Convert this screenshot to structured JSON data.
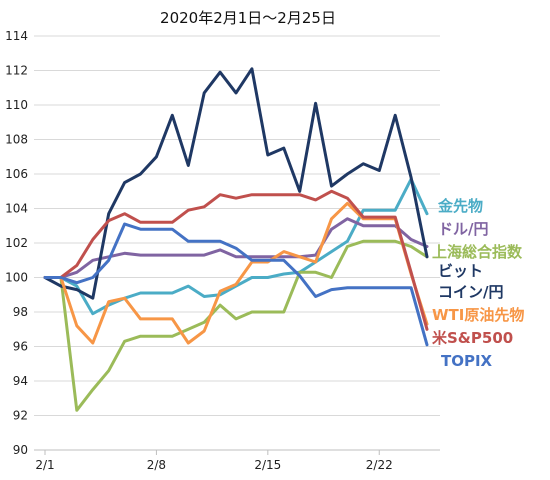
{
  "chart_data": {
    "type": "line",
    "title": "2020年2月1日～2月25日",
    "xlabel": "",
    "ylabel": "",
    "ylim": [
      90,
      114
    ],
    "yticks": [
      90,
      92,
      94,
      96,
      98,
      100,
      102,
      104,
      106,
      108,
      110,
      112,
      114
    ],
    "x": [
      1,
      2,
      3,
      4,
      5,
      6,
      7,
      8,
      9,
      10,
      11,
      12,
      13,
      14,
      15,
      16,
      17,
      18,
      19,
      20,
      21,
      22,
      23,
      24,
      25
    ],
    "xticks": [
      {
        "x": 1,
        "label": "2/1"
      },
      {
        "x": 8,
        "label": "2/8"
      },
      {
        "x": 15,
        "label": "2/15"
      },
      {
        "x": 22,
        "label": "2/22"
      }
    ],
    "grid": "horizontal",
    "legend_position": "right",
    "series": [
      {
        "name": "金先物",
        "color": "#4BACC6",
        "values": [
          100,
          100,
          99.5,
          97.9,
          98.4,
          98.8,
          99.1,
          99.1,
          99.1,
          99.5,
          98.9,
          99.0,
          99.5,
          100.0,
          100.0,
          100.2,
          100.3,
          100.9,
          101.5,
          102.1,
          103.9,
          103.9,
          103.9,
          105.7,
          103.7
        ]
      },
      {
        "name": "ドル/円",
        "color": "#8064A2",
        "values": [
          100,
          100,
          100.3,
          101.0,
          101.2,
          101.4,
          101.3,
          101.3,
          101.3,
          101.3,
          101.3,
          101.6,
          101.2,
          101.2,
          101.2,
          101.2,
          101.2,
          101.3,
          102.8,
          103.4,
          103.0,
          103.0,
          103.0,
          102.2,
          101.8
        ]
      },
      {
        "name": "上海総合指数",
        "color": "#9BBB59",
        "values": [
          100,
          100,
          92.3,
          93.5,
          94.6,
          96.3,
          96.6,
          96.6,
          96.6,
          97.0,
          97.4,
          98.4,
          97.6,
          98.0,
          98.0,
          98.0,
          100.3,
          100.3,
          100.0,
          101.8,
          102.1,
          102.1,
          102.1,
          101.8,
          101.2
        ]
      },
      {
        "name": "ビット\nコイン/円",
        "color": "#1F3864",
        "values": [
          100,
          99.5,
          99.3,
          98.8,
          103.7,
          105.5,
          106.0,
          107.0,
          109.4,
          106.5,
          110.7,
          111.9,
          110.7,
          112.1,
          107.1,
          107.5,
          105.0,
          110.1,
          105.3,
          106.0,
          106.6,
          106.2,
          109.4,
          105.8,
          101.2
        ]
      },
      {
        "name": "WTI原油先物",
        "color": "#F79646",
        "values": [
          100,
          100,
          97.2,
          96.2,
          98.6,
          98.8,
          97.6,
          97.6,
          97.6,
          96.2,
          96.9,
          99.2,
          99.6,
          100.9,
          100.9,
          101.5,
          101.2,
          100.9,
          103.4,
          104.3,
          103.4,
          103.4,
          103.4,
          100.2,
          97.3
        ]
      },
      {
        "name": "米S&P500",
        "color": "#C0504D",
        "values": [
          100,
          100,
          100.7,
          102.2,
          103.3,
          103.7,
          103.2,
          103.2,
          103.2,
          103.9,
          104.1,
          104.8,
          104.6,
          104.8,
          104.8,
          104.8,
          104.8,
          104.5,
          105.0,
          104.6,
          103.5,
          103.5,
          103.5,
          100.3,
          97.0
        ]
      },
      {
        "name": "TOPIX",
        "color": "#4472C4",
        "values": [
          100,
          100,
          99.7,
          100.0,
          101.0,
          103.1,
          102.8,
          102.8,
          102.8,
          102.1,
          102.1,
          102.1,
          101.7,
          101.0,
          101.0,
          101.0,
          100.1,
          98.9,
          99.3,
          99.4,
          99.4,
          99.4,
          99.4,
          99.4,
          96.1
        ]
      }
    ]
  }
}
